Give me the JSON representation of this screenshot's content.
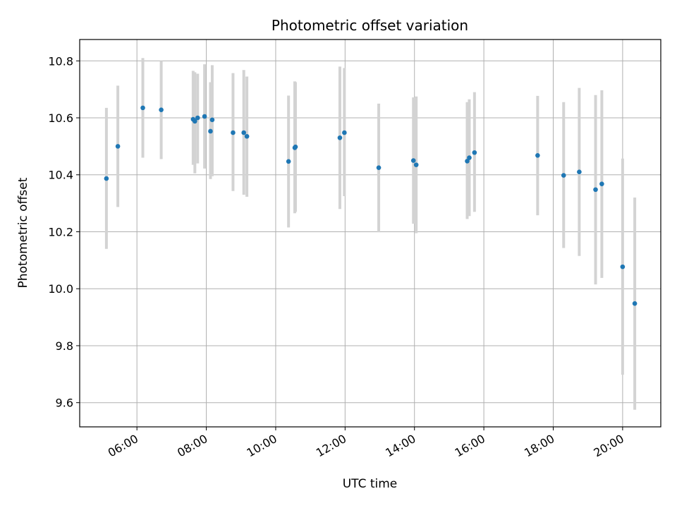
{
  "chart_data": {
    "type": "scatter",
    "title": "Photometric offset variation",
    "xlabel": "UTC time",
    "ylabel": "Photometric offset",
    "x_unit": "hours UTC",
    "xlim": [
      4.35,
      21.1
    ],
    "ylim": [
      9.515,
      10.875
    ],
    "x_ticks": [
      {
        "value": 6,
        "label": "06:00"
      },
      {
        "value": 8,
        "label": "08:00"
      },
      {
        "value": 10,
        "label": "10:00"
      },
      {
        "value": 12,
        "label": "12:00"
      },
      {
        "value": 14,
        "label": "14:00"
      },
      {
        "value": 16,
        "label": "16:00"
      },
      {
        "value": 18,
        "label": "18:00"
      },
      {
        "value": 20,
        "label": "20:00"
      }
    ],
    "y_ticks": [
      {
        "value": 9.6,
        "label": "9.6"
      },
      {
        "value": 9.8,
        "label": "9.8"
      },
      {
        "value": 10.0,
        "label": "10.0"
      },
      {
        "value": 10.2,
        "label": "10.2"
      },
      {
        "value": 10.4,
        "label": "10.4"
      },
      {
        "value": 10.6,
        "label": "10.6"
      },
      {
        "value": 10.8,
        "label": "10.8"
      }
    ],
    "grid": true,
    "point_color": "#1f77b4",
    "errorbar_color": "#d3d3d3",
    "points": [
      {
        "x": 5.12,
        "y": 10.387,
        "lo": 10.14,
        "hi": 10.635
      },
      {
        "x": 5.45,
        "y": 10.5,
        "lo": 10.287,
        "hi": 10.713
      },
      {
        "x": 6.17,
        "y": 10.635,
        "lo": 10.46,
        "hi": 10.81
      },
      {
        "x": 6.7,
        "y": 10.628,
        "lo": 10.455,
        "hi": 10.8
      },
      {
        "x": 7.62,
        "y": 10.595,
        "lo": 10.435,
        "hi": 10.765
      },
      {
        "x": 7.67,
        "y": 10.588,
        "lo": 10.405,
        "hi": 10.76
      },
      {
        "x": 7.75,
        "y": 10.6,
        "lo": 10.44,
        "hi": 10.755
      },
      {
        "x": 7.95,
        "y": 10.605,
        "lo": 10.422,
        "hi": 10.788
      },
      {
        "x": 8.12,
        "y": 10.553,
        "lo": 10.385,
        "hi": 10.725
      },
      {
        "x": 8.17,
        "y": 10.593,
        "lo": 10.395,
        "hi": 10.785
      },
      {
        "x": 8.77,
        "y": 10.548,
        "lo": 10.343,
        "hi": 10.757
      },
      {
        "x": 9.08,
        "y": 10.548,
        "lo": 10.33,
        "hi": 10.768
      },
      {
        "x": 9.17,
        "y": 10.535,
        "lo": 10.323,
        "hi": 10.745
      },
      {
        "x": 10.37,
        "y": 10.447,
        "lo": 10.215,
        "hi": 10.678
      },
      {
        "x": 10.55,
        "y": 10.495,
        "lo": 10.265,
        "hi": 10.728
      },
      {
        "x": 10.57,
        "y": 10.498,
        "lo": 10.27,
        "hi": 10.725
      },
      {
        "x": 11.85,
        "y": 10.53,
        "lo": 10.28,
        "hi": 10.78
      },
      {
        "x": 11.98,
        "y": 10.548,
        "lo": 10.325,
        "hi": 10.775
      },
      {
        "x": 12.97,
        "y": 10.425,
        "lo": 10.198,
        "hi": 10.65
      },
      {
        "x": 13.97,
        "y": 10.45,
        "lo": 10.228,
        "hi": 10.672
      },
      {
        "x": 14.05,
        "y": 10.435,
        "lo": 10.195,
        "hi": 10.675
      },
      {
        "x": 15.52,
        "y": 10.448,
        "lo": 10.245,
        "hi": 10.655
      },
      {
        "x": 15.58,
        "y": 10.46,
        "lo": 10.255,
        "hi": 10.665
      },
      {
        "x": 15.73,
        "y": 10.478,
        "lo": 10.27,
        "hi": 10.69
      },
      {
        "x": 17.55,
        "y": 10.468,
        "lo": 10.258,
        "hi": 10.677
      },
      {
        "x": 18.3,
        "y": 10.398,
        "lo": 10.143,
        "hi": 10.655
      },
      {
        "x": 18.75,
        "y": 10.41,
        "lo": 10.115,
        "hi": 10.705
      },
      {
        "x": 19.22,
        "y": 10.348,
        "lo": 10.015,
        "hi": 10.68
      },
      {
        "x": 19.4,
        "y": 10.368,
        "lo": 10.038,
        "hi": 10.697
      },
      {
        "x": 20.0,
        "y": 10.077,
        "lo": 9.698,
        "hi": 10.457
      },
      {
        "x": 20.35,
        "y": 9.948,
        "lo": 9.575,
        "hi": 10.32
      }
    ]
  }
}
